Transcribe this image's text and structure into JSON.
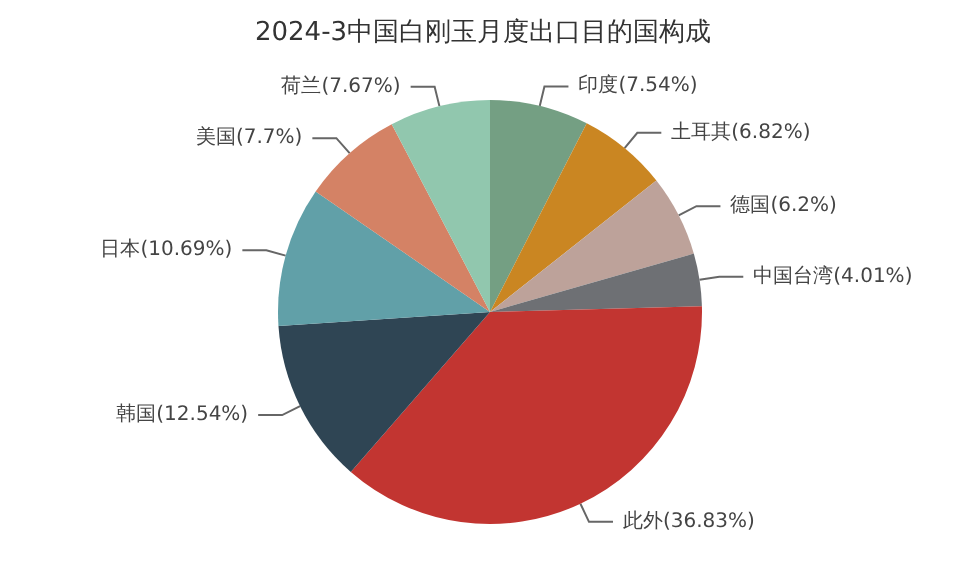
{
  "chart_data": {
    "type": "pie",
    "title": "2024-3中国白刚玉月度出口目的国构成",
    "categories": [
      "印度(7.54%)",
      "土耳其(6.82%)",
      "德国(6.2%)",
      "中国台湾(4.01%)",
      "此外(36.83%)",
      "韩国(12.54%)",
      "日本(10.69%)",
      "美国(7.7%)",
      "荷兰(7.67%)"
    ],
    "values": [
      7.54,
      6.82,
      6.2,
      4.01,
      36.83,
      12.54,
      10.69,
      7.7,
      7.67
    ],
    "colors": [
      "#749f83",
      "#ca8622",
      "#bda29a",
      "#6e7074",
      "#c23531",
      "#2f4554",
      "#61a0a8",
      "#d48265",
      "#91c7ae"
    ]
  }
}
